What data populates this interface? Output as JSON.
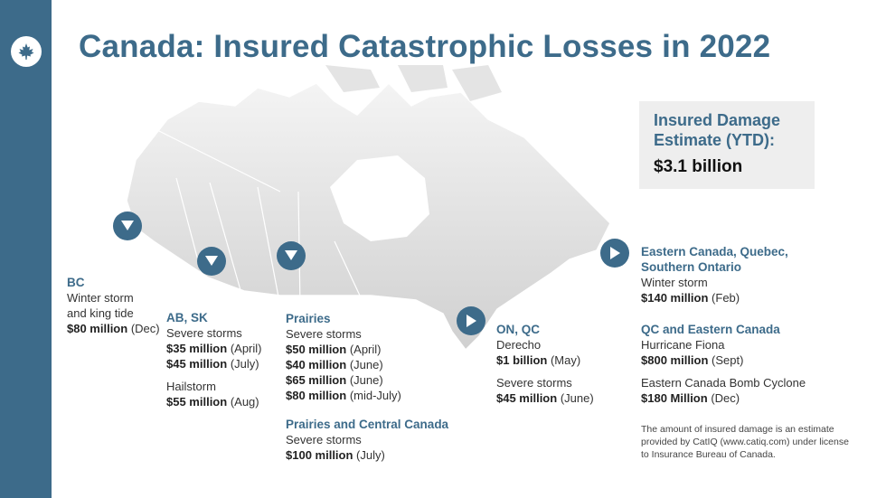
{
  "title": "Canada: Insured Catastrophic Losses in 2022",
  "icons": {
    "logo": "maple-leaf-icon",
    "marker_down": "triangle-down-icon",
    "marker_right": "play-icon"
  },
  "colors": {
    "accent": "#3d6b8a",
    "map": "#dcdcdc"
  },
  "estimate": {
    "label": "Insured Damage Estimate (YTD):",
    "value": "$3.1 billion"
  },
  "bc": {
    "heading": "BC",
    "event1": "Winter storm",
    "event2": "and king tide",
    "amount": "$80 million",
    "date": "(Dec)"
  },
  "ab_sk": {
    "heading": "AB, SK",
    "event": "Severe storms",
    "amount1": "$35 million",
    "date1": "(April)",
    "amount2": "$45 million",
    "date2": "(July)",
    "event2": "Hailstorm",
    "amount3": "$55 million",
    "date3": "(Aug)"
  },
  "prairies": {
    "heading": "Prairies",
    "event": "Severe storms",
    "amount1": "$50 million",
    "date1": "(April)",
    "amount2": "$40 million",
    "date2": "(June)",
    "amount3": "$65 million",
    "date3": "(June)",
    "amount4": "$80 million",
    "date4": "(mid-July)"
  },
  "prairies_central": {
    "heading": "Prairies and Central Canada",
    "event": "Severe storms",
    "amount": "$100 million",
    "date": "(July)"
  },
  "on_qc": {
    "heading": "ON, QC",
    "event": "Derecho",
    "amount1": "$1 billion",
    "date1": "(May)",
    "event2": "Severe storms",
    "amount2": "$45 million",
    "date2": "(June)"
  },
  "eastern": {
    "heading1": "Eastern Canada, Quebec,",
    "heading2": "Southern Ontario",
    "event": "Winter storm",
    "amount": "$140 million",
    "date": "(Feb)"
  },
  "qc_eastern": {
    "heading": "QC and Eastern Canada",
    "event": "Hurricane Fiona",
    "amount": "$800 million",
    "date": "(Sept)",
    "event2": "Eastern Canada Bomb Cyclone",
    "amount2": "$180 Million",
    "date2": "(Dec)"
  },
  "note": "The amount of insured damage is an estimate provided by CatIQ (www.catiq.com) under license to Insurance Bureau of Canada."
}
